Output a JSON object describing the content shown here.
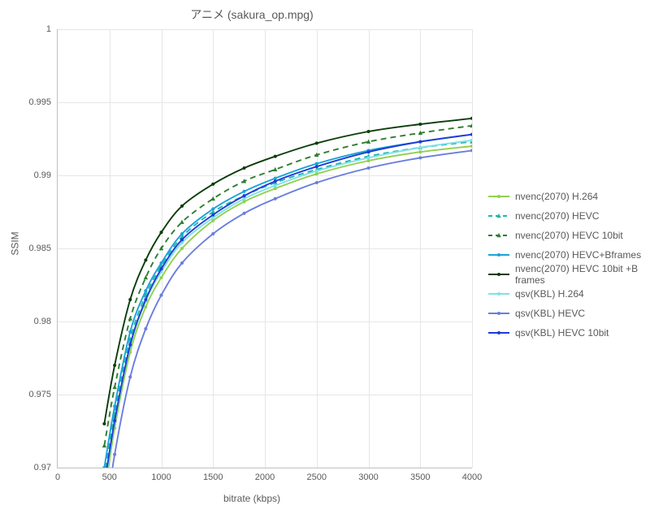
{
  "chart": {
    "type": "line",
    "title": "アニメ (sakura_op.mpg)",
    "xlabel": "bitrate (kbps)",
    "ylabel": "SSIM",
    "title_fontsize": 14,
    "label_fontsize": 12,
    "tick_fontsize": 11,
    "text_color": "#595959",
    "background_color": "#ffffff",
    "grid_color": "#e6e6e6",
    "axis_color": "#bfbfbf",
    "xlim": [
      0,
      4000
    ],
    "ylim": [
      0.97,
      1.0
    ],
    "xticks": [
      0,
      500,
      1000,
      1500,
      2000,
      2500,
      3000,
      3500,
      4000
    ],
    "yticks": [
      0.97,
      0.975,
      0.98,
      0.985,
      0.99,
      0.995,
      1.0
    ],
    "marker_size": 4.5,
    "line_width": 1.9,
    "legend_position": "right",
    "series": [
      {
        "name": "nvenc(2070) H.264",
        "color": "#92d050",
        "dash": "solid",
        "marker": "circle",
        "x": [
          450,
          550,
          700,
          850,
          1000,
          1200,
          1500,
          1800,
          2100,
          2500,
          3000,
          3500,
          4000
        ],
        "y": [
          0.968,
          0.9727,
          0.9779,
          0.981,
          0.983,
          0.985,
          0.9869,
          0.9882,
          0.9891,
          0.9901,
          0.991,
          0.9916,
          0.992
        ]
      },
      {
        "name": "nvenc(2070) HEVC",
        "color": "#1fb5ad",
        "dash": "dash",
        "marker": "triangle",
        "x": [
          450,
          550,
          700,
          850,
          1000,
          1200,
          1500,
          1800,
          2100,
          2500,
          3000,
          3500,
          4000
        ],
        "y": [
          0.9693,
          0.9737,
          0.9788,
          0.9818,
          0.9838,
          0.9858,
          0.9875,
          0.9886,
          0.9895,
          0.9904,
          0.9913,
          0.9919,
          0.9923
        ]
      },
      {
        "name": "nvenc(2070) HEVC 10bit",
        "color": "#2e7d32",
        "dash": "dash",
        "marker": "triangle",
        "x": [
          450,
          550,
          700,
          850,
          1000,
          1200,
          1500,
          1800,
          2100,
          2500,
          3000,
          3500,
          4000
        ],
        "y": [
          0.9715,
          0.9755,
          0.9802,
          0.983,
          0.985,
          0.9868,
          0.9884,
          0.9896,
          0.9904,
          0.9914,
          0.9923,
          0.9929,
          0.9934
        ]
      },
      {
        "name": "nvenc(2070) HEVC+Bframes",
        "color": "#1aa3d9",
        "dash": "solid",
        "marker": "circle",
        "x": [
          450,
          550,
          700,
          850,
          1000,
          1200,
          1500,
          1800,
          2100,
          2500,
          3000,
          3500,
          4000
        ],
        "y": [
          0.97,
          0.9742,
          0.9793,
          0.9821,
          0.984,
          0.986,
          0.9877,
          0.9889,
          0.9898,
          0.9908,
          0.9917,
          0.9923,
          0.9928
        ]
      },
      {
        "name": "nvenc(2070) HEVC 10bit +B frames",
        "color": "#0a3d0a",
        "dash": "solid",
        "marker": "circle",
        "x": [
          450,
          550,
          700,
          850,
          1000,
          1200,
          1500,
          1800,
          2100,
          2500,
          3000,
          3500,
          4000
        ],
        "y": [
          0.973,
          0.977,
          0.9815,
          0.9842,
          0.9861,
          0.9879,
          0.9894,
          0.9905,
          0.9913,
          0.9922,
          0.993,
          0.9935,
          0.9939
        ]
      },
      {
        "name": "qsv(KBL) H.264",
        "color": "#7fe0e8",
        "dash": "solid",
        "marker": "circle",
        "x": [
          450,
          550,
          700,
          850,
          1000,
          1200,
          1500,
          1800,
          2100,
          2500,
          3000,
          3500,
          4000
        ],
        "y": [
          0.9685,
          0.9731,
          0.9783,
          0.9814,
          0.9834,
          0.9854,
          0.9871,
          0.9884,
          0.9893,
          0.9903,
          0.9912,
          0.9919,
          0.9924
        ]
      },
      {
        "name": "qsv(KBL) HEVC",
        "color": "#6a7de0",
        "dash": "solid",
        "marker": "circle",
        "x": [
          450,
          550,
          700,
          850,
          1000,
          1200,
          1500,
          1800,
          2100,
          2500,
          3000,
          3500,
          4000
        ],
        "y": [
          0.966,
          0.9709,
          0.9762,
          0.9795,
          0.9818,
          0.984,
          0.986,
          0.9874,
          0.9884,
          0.9895,
          0.9905,
          0.9912,
          0.9917
        ]
      },
      {
        "name": "qsv(KBL) HEVC 10bit",
        "color": "#1f3bd6",
        "dash": "solid",
        "marker": "circle",
        "x": [
          450,
          550,
          700,
          850,
          1000,
          1200,
          1500,
          1800,
          2100,
          2500,
          3000,
          3500,
          4000
        ],
        "y": [
          0.9688,
          0.9732,
          0.9784,
          0.9815,
          0.9836,
          0.9856,
          0.9873,
          0.9886,
          0.9896,
          0.9906,
          0.9916,
          0.9923,
          0.9928
        ]
      }
    ]
  }
}
